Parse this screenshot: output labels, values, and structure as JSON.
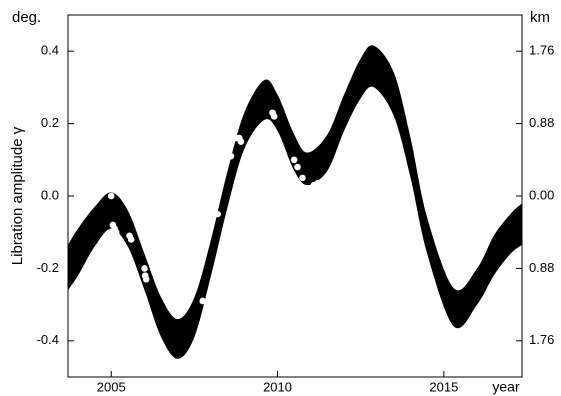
{
  "chart_data": {
    "type": "band",
    "y_label": "Libration amplitude γ",
    "y_unit": "deg.",
    "y2_unit": "km",
    "x_label": "year",
    "xlim": [
      2003.7,
      2017.35
    ],
    "xticks": [
      2005,
      2010,
      2015
    ],
    "ylim": [
      -0.5,
      0.5
    ],
    "yticks": [
      0.4,
      0.2,
      {
        "value": 0,
        "label": "0.0"
      },
      -0.2,
      -0.4
    ],
    "y2lim": [
      -2.2,
      2.2
    ],
    "y2ticks": [
      {
        "value": 1.76,
        "label": "1.76"
      },
      {
        "value": 0.88,
        "label": "0.88"
      },
      {
        "value": 0,
        "label": "0.00"
      },
      {
        "value": -0.88,
        "label": "0.88"
      },
      {
        "value": -1.76,
        "label": "1.76"
      }
    ],
    "band": {
      "color": "#000000",
      "x": [
        2003.7,
        2004.0,
        2004.5,
        2005.0,
        2005.5,
        2006.0,
        2006.5,
        2007.0,
        2007.5,
        2008.0,
        2008.5,
        2009.0,
        2009.6,
        2010.0,
        2010.5,
        2010.9,
        2011.5,
        2012.0,
        2012.5,
        2012.9,
        2013.5,
        2014.0,
        2014.5,
        2015.3,
        2016.0,
        2016.5,
        2017.0,
        2017.35
      ],
      "upper": [
        -0.135,
        -0.09,
        -0.03,
        0.01,
        -0.04,
        -0.16,
        -0.28,
        -0.34,
        -0.28,
        -0.12,
        0.07,
        0.23,
        0.32,
        0.28,
        0.17,
        0.12,
        0.17,
        0.28,
        0.38,
        0.415,
        0.34,
        0.16,
        -0.06,
        -0.255,
        -0.2,
        -0.11,
        -0.05,
        -0.02
      ],
      "lower": [
        -0.26,
        -0.22,
        -0.14,
        -0.09,
        -0.14,
        -0.26,
        -0.39,
        -0.45,
        -0.39,
        -0.22,
        -0.03,
        0.13,
        0.21,
        0.18,
        0.07,
        0.03,
        0.07,
        0.18,
        0.27,
        0.3,
        0.22,
        0.05,
        -0.16,
        -0.36,
        -0.3,
        -0.22,
        -0.16,
        -0.135
      ]
    },
    "points": {
      "color": "#ffffff",
      "x": [
        2005.0,
        2005.05,
        2005.1,
        2005.15,
        2005.55,
        2005.6,
        2006.0,
        2006.02,
        2006.05,
        2007.75,
        2008.2,
        2008.6,
        2008.75,
        2008.85,
        2008.9,
        2009.85,
        2009.9,
        2010.5,
        2010.6,
        2010.75,
        2011.1,
        2011.2,
        2011.2
      ],
      "values": [
        0.0,
        -0.08,
        -0.09,
        -0.1,
        -0.11,
        -0.12,
        -0.2,
        -0.22,
        -0.23,
        -0.29,
        -0.05,
        0.11,
        0.16,
        0.16,
        0.15,
        0.23,
        0.22,
        0.1,
        0.08,
        0.05,
        0.03,
        0.02,
        0.035
      ]
    }
  }
}
